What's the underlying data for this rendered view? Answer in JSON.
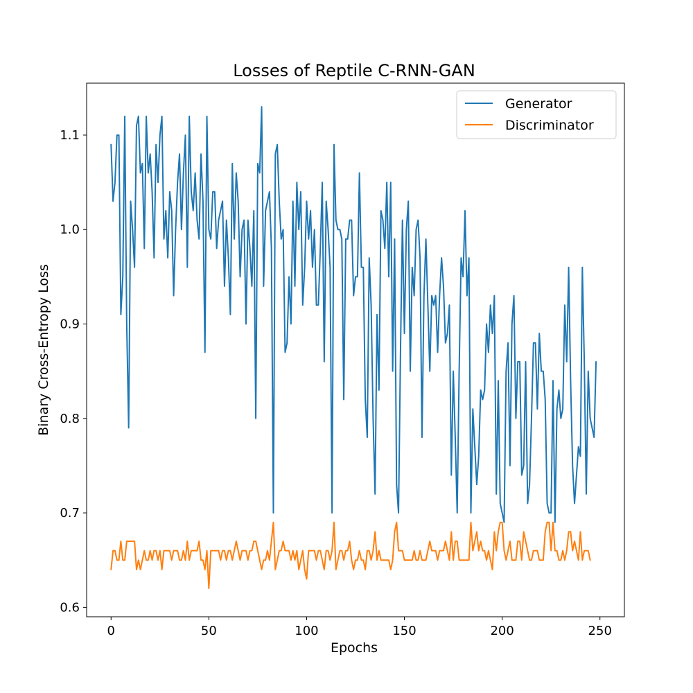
{
  "chart_data": {
    "type": "line",
    "title": "Losses of Reptile C-RNN-GAN",
    "xlabel": "Epochs",
    "ylabel": "Binary Cross-Entropy Loss",
    "xlim": [
      -12.5,
      262.5
    ],
    "ylim": [
      0.59,
      1.155
    ],
    "xticks": [
      0,
      50,
      100,
      150,
      200,
      250
    ],
    "yticks": [
      0.6,
      0.7,
      0.8,
      0.9,
      1.0,
      1.1
    ],
    "ytick_labels": [
      "0.6",
      "0.7",
      "0.8",
      "0.9",
      "1.0",
      "1.1"
    ],
    "grid": false,
    "legend_position": "top-right",
    "series": [
      {
        "name": "Generator",
        "color": "#1f77b4",
        "values": [
          1.09,
          1.03,
          1.05,
          1.1,
          1.1,
          0.91,
          0.95,
          1.12,
          0.9,
          0.79,
          1.03,
          1.0,
          0.96,
          1.11,
          1.12,
          1.06,
          1.07,
          0.98,
          1.12,
          1.06,
          1.08,
          1.04,
          0.97,
          1.09,
          1.05,
          1.1,
          1.12,
          0.99,
          1.02,
          0.97,
          1.04,
          1.02,
          0.93,
          1.0,
          1.05,
          1.08,
          1.0,
          1.06,
          1.1,
          0.96,
          1.12,
          1.04,
          1.02,
          1.06,
          1.01,
          0.99,
          1.08,
          1.03,
          0.87,
          1.12,
          1.0,
          0.99,
          1.04,
          1.04,
          0.98,
          1.01,
          1.02,
          1.03,
          0.94,
          1.01,
          0.97,
          0.91,
          1.07,
          0.99,
          1.06,
          1.03,
          0.95,
          1.0,
          1.01,
          0.9,
          1.01,
          0.98,
          0.94,
          1.02,
          0.8,
          1.07,
          1.06,
          1.13,
          0.94,
          1.02,
          1.03,
          1.04,
          0.98,
          0.7,
          1.08,
          1.09,
          1.03,
          0.99,
          1.0,
          0.87,
          0.88,
          0.95,
          0.9,
          1.03,
          0.94,
          1.05,
          1.0,
          1.04,
          0.92,
          0.96,
          1.03,
          0.99,
          1.02,
          0.96,
          1.0,
          0.92,
          0.92,
          0.98,
          1.05,
          0.86,
          1.03,
          1.0,
          0.96,
          0.7,
          1.09,
          1.01,
          1.0,
          1.0,
          0.99,
          0.82,
          0.99,
          0.99,
          1.01,
          1.01,
          0.93,
          0.95,
          0.95,
          1.06,
          0.96,
          0.96,
          0.82,
          0.78,
          0.97,
          0.92,
          0.8,
          0.72,
          0.91,
          0.83,
          1.02,
          1.01,
          0.98,
          1.05,
          0.95,
          1.05,
          0.85,
          0.99,
          0.73,
          0.7,
          0.87,
          1.01,
          0.89,
          1.0,
          1.03,
          0.85,
          0.96,
          0.93,
          1.0,
          1.01,
          0.97,
          0.78,
          0.93,
          0.99,
          0.92,
          0.85,
          0.93,
          0.92,
          0.93,
          0.87,
          0.93,
          0.97,
          0.94,
          0.88,
          0.89,
          0.92,
          0.74,
          0.85,
          0.78,
          0.7,
          0.85,
          0.97,
          0.95,
          1.02,
          0.93,
          0.97,
          0.7,
          0.81,
          0.77,
          0.73,
          0.76,
          0.83,
          0.82,
          0.83,
          0.9,
          0.87,
          0.92,
          0.89,
          0.93,
          0.72,
          0.84,
          0.71,
          0.7,
          0.69,
          0.85,
          0.88,
          0.75,
          0.9,
          0.93,
          0.8,
          0.86,
          0.86,
          0.74,
          0.75,
          0.86,
          0.71,
          0.73,
          0.8,
          0.88,
          0.88,
          0.81,
          0.89,
          0.85,
          0.85,
          0.82,
          0.71,
          0.7,
          0.7,
          0.84,
          0.69,
          0.81,
          0.83,
          0.8,
          0.81,
          0.92,
          0.86,
          0.96,
          0.84,
          0.75,
          0.71,
          0.74,
          0.77,
          0.76,
          0.96,
          0.86,
          0.72,
          0.85,
          0.8,
          0.79,
          0.78,
          0.86
        ]
      },
      {
        "name": "Discriminator",
        "color": "#ff7f0e",
        "values": [
          0.64,
          0.66,
          0.66,
          0.65,
          0.65,
          0.67,
          0.65,
          0.65,
          0.67,
          0.67,
          0.67,
          0.67,
          0.67,
          0.64,
          0.65,
          0.64,
          0.65,
          0.66,
          0.65,
          0.65,
          0.66,
          0.65,
          0.66,
          0.66,
          0.65,
          0.66,
          0.64,
          0.66,
          0.66,
          0.66,
          0.66,
          0.65,
          0.66,
          0.66,
          0.66,
          0.65,
          0.65,
          0.66,
          0.65,
          0.67,
          0.65,
          0.66,
          0.66,
          0.66,
          0.66,
          0.67,
          0.65,
          0.65,
          0.64,
          0.66,
          0.62,
          0.66,
          0.66,
          0.66,
          0.66,
          0.66,
          0.65,
          0.66,
          0.66,
          0.65,
          0.66,
          0.66,
          0.65,
          0.66,
          0.67,
          0.66,
          0.65,
          0.66,
          0.66,
          0.66,
          0.65,
          0.66,
          0.66,
          0.67,
          0.67,
          0.66,
          0.65,
          0.64,
          0.65,
          0.65,
          0.66,
          0.65,
          0.67,
          0.69,
          0.64,
          0.65,
          0.66,
          0.66,
          0.67,
          0.66,
          0.66,
          0.66,
          0.65,
          0.66,
          0.65,
          0.66,
          0.64,
          0.65,
          0.66,
          0.64,
          0.63,
          0.66,
          0.66,
          0.66,
          0.66,
          0.65,
          0.66,
          0.66,
          0.65,
          0.64,
          0.66,
          0.66,
          0.65,
          0.66,
          0.69,
          0.64,
          0.65,
          0.66,
          0.66,
          0.65,
          0.66,
          0.66,
          0.67,
          0.65,
          0.64,
          0.65,
          0.65,
          0.66,
          0.65,
          0.65,
          0.64,
          0.66,
          0.66,
          0.65,
          0.66,
          0.68,
          0.65,
          0.66,
          0.65,
          0.65,
          0.65,
          0.65,
          0.65,
          0.64,
          0.65,
          0.68,
          0.69,
          0.66,
          0.66,
          0.66,
          0.65,
          0.65,
          0.65,
          0.65,
          0.65,
          0.66,
          0.65,
          0.65,
          0.66,
          0.65,
          0.65,
          0.65,
          0.66,
          0.67,
          0.66,
          0.66,
          0.66,
          0.65,
          0.66,
          0.66,
          0.66,
          0.67,
          0.66,
          0.65,
          0.68,
          0.65,
          0.67,
          0.67,
          0.65,
          0.65,
          0.65,
          0.65,
          0.65,
          0.65,
          0.69,
          0.66,
          0.67,
          0.68,
          0.66,
          0.67,
          0.66,
          0.66,
          0.65,
          0.66,
          0.65,
          0.64,
          0.68,
          0.66,
          0.68,
          0.69,
          0.69,
          0.66,
          0.65,
          0.66,
          0.67,
          0.65,
          0.65,
          0.65,
          0.67,
          0.67,
          0.65,
          0.68,
          0.67,
          0.66,
          0.65,
          0.65,
          0.66,
          0.66,
          0.66,
          0.65,
          0.65,
          0.65,
          0.68,
          0.69,
          0.69,
          0.66,
          0.69,
          0.66,
          0.66,
          0.65,
          0.65,
          0.66,
          0.65,
          0.66,
          0.68,
          0.68,
          0.66,
          0.67,
          0.66,
          0.65,
          0.68,
          0.65,
          0.66,
          0.66,
          0.66,
          0.65
        ]
      }
    ]
  }
}
